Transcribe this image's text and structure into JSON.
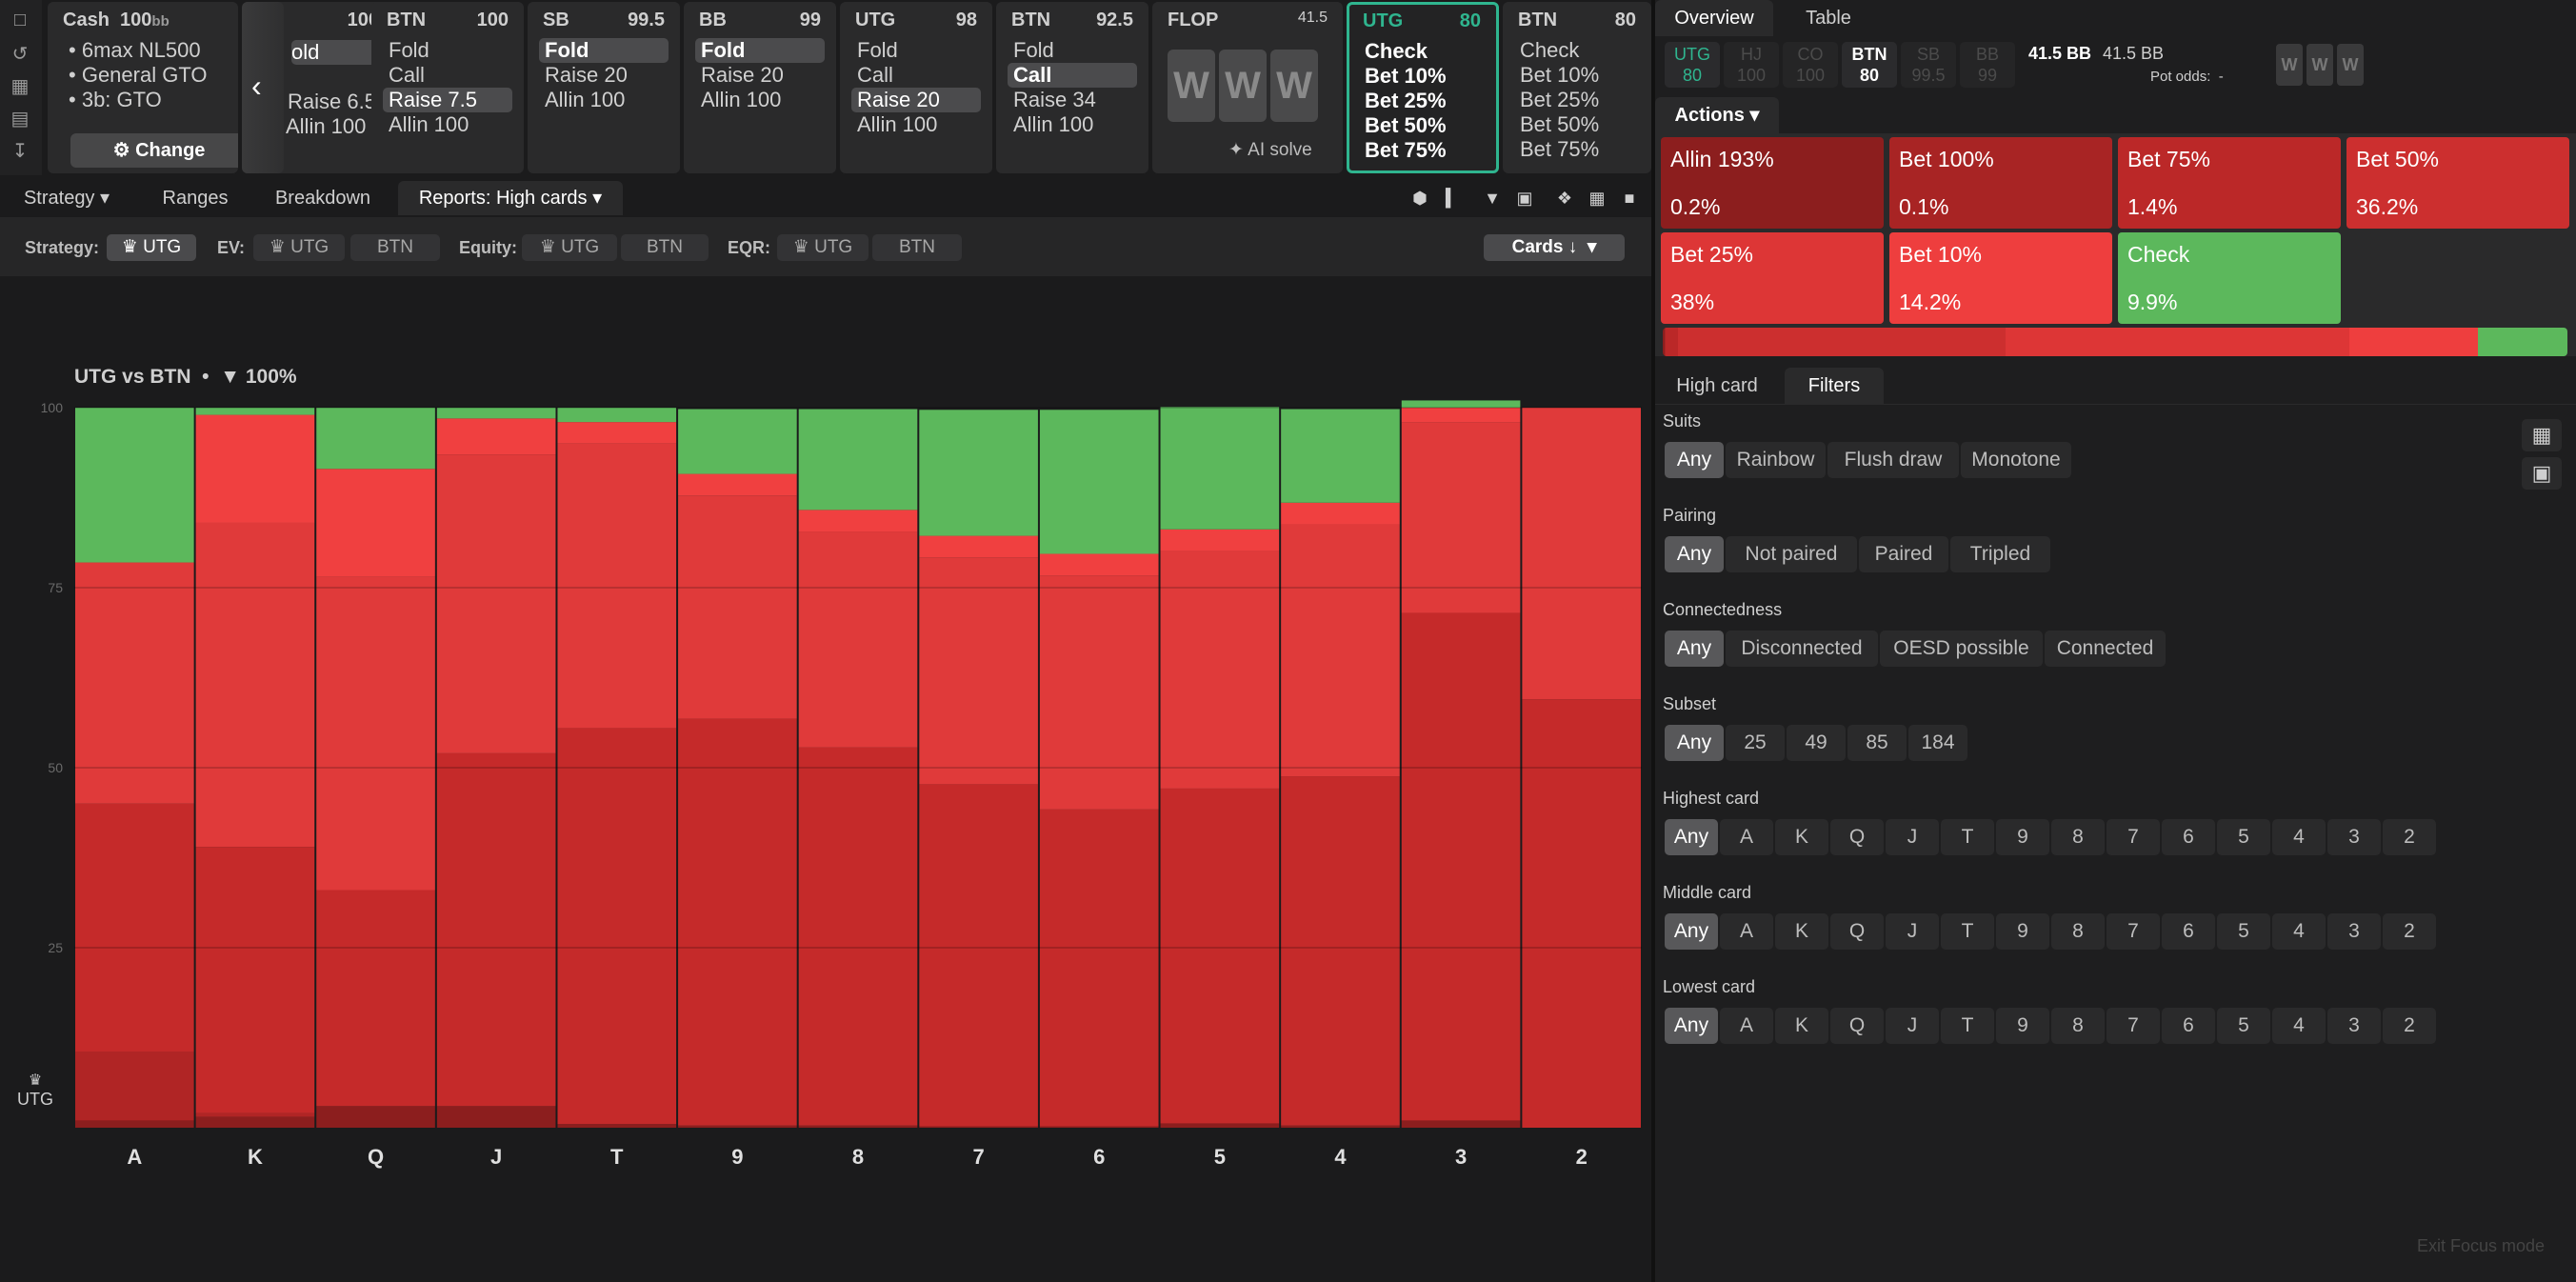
{
  "rail": {
    "icons": [
      "bookmark-icon",
      "refresh-icon",
      "save-icon",
      "gamepad-icon",
      "collapse-icon"
    ]
  },
  "cash": {
    "title": "Cash",
    "stack": "100",
    "stack_unit": "bb",
    "lines": [
      "6max NL500",
      "General GTO",
      "3b: GTO"
    ],
    "change_label": "Change"
  },
  "partial_card": {
    "stack": "100",
    "actions": [
      "old",
      "Raise 6.5",
      "Allin 100"
    ]
  },
  "seats": [
    {
      "pos": "BTN",
      "stack": "100",
      "actions": [
        "Fold",
        "Call",
        "Raise 7.5",
        "Allin 100"
      ],
      "selected": 2
    },
    {
      "pos": "SB",
      "stack": "99.5",
      "actions": [
        "Fold",
        "Raise 20",
        "Allin 100"
      ],
      "selected": 0
    },
    {
      "pos": "BB",
      "stack": "99",
      "actions": [
        "Fold",
        "Raise 20",
        "Allin 100"
      ],
      "selected": 0
    },
    {
      "pos": "UTG",
      "stack": "98",
      "actions": [
        "Fold",
        "Call",
        "Raise 20",
        "Allin 100"
      ],
      "selected": 2
    },
    {
      "pos": "BTN",
      "stack": "92.5",
      "actions": [
        "Fold",
        "Call",
        "Raise 34",
        "Allin 100"
      ],
      "selected": 1
    }
  ],
  "flop": {
    "label": "FLOP",
    "pot": "41.5",
    "cards": [
      "W",
      "W",
      "W"
    ],
    "ai_solve": "AI solve"
  },
  "active": {
    "pos": "UTG",
    "stack": "80",
    "actions": [
      "Check",
      "Bet 10%",
      "Bet 25%",
      "Bet 50%",
      "Bet 75%"
    ]
  },
  "next": {
    "pos": "BTN",
    "stack": "80",
    "actions": [
      "Check",
      "Bet 10%",
      "Bet 25%",
      "Bet 50%",
      "Bet 75%"
    ]
  },
  "tabs": [
    "Strategy",
    "Ranges",
    "Breakdown",
    "Reports: High cards"
  ],
  "filterbar": {
    "strategy_label": "Strategy:",
    "strategy_opt": "UTG",
    "ev_label": "EV:",
    "ev_opts": [
      "UTG",
      "BTN"
    ],
    "equity_label": "Equity:",
    "equity_opts": [
      "UTG",
      "BTN"
    ],
    "eqr_label": "EQR:",
    "eqr_opts": [
      "UTG",
      "BTN"
    ],
    "sort": "Cards"
  },
  "chart_data": {
    "type": "bar",
    "title": "UTG vs BTN",
    "filter_pct": "100%",
    "categories": [
      "A",
      "K",
      "Q",
      "J",
      "T",
      "9",
      "8",
      "7",
      "6",
      "5",
      "4",
      "3",
      "2"
    ],
    "ylim": [
      0,
      100
    ],
    "yticks": [
      100,
      75,
      50,
      25
    ],
    "player": "UTG",
    "series": [
      {
        "name": "Allin 193%",
        "color": "#8c1e1e",
        "values": [
          1,
          1.5,
          3,
          3,
          0.5,
          0.3,
          0.3,
          0.2,
          0.2,
          0.6,
          0.3,
          1,
          0
        ]
      },
      {
        "name": "Bet 100%",
        "color": "#b02525",
        "values": [
          9.5,
          0.5,
          0,
          0,
          0,
          0,
          0,
          0,
          0,
          0,
          0,
          0,
          0
        ]
      },
      {
        "name": "Bet 75%",
        "color": "#c52a2a",
        "values": [
          34.5,
          37,
          30,
          49,
          55,
          56.5,
          52.5,
          47.5,
          44,
          46.5,
          48.5,
          70.5,
          59.5
        ]
      },
      {
        "name": "Bet 50%",
        "color": "#d03030",
        "values": [
          0,
          0,
          0,
          0,
          0,
          0,
          0,
          0,
          0,
          0,
          0,
          0,
          0
        ]
      },
      {
        "name": "Bet 25%",
        "color": "#e03a3a",
        "values": [
          33.5,
          45,
          43.5,
          41.5,
          39.5,
          31,
          30,
          31.5,
          32.5,
          33,
          35,
          26.5,
          40.5
        ]
      },
      {
        "name": "Bet 10%",
        "color": "#f04040",
        "values": [
          0,
          15,
          15,
          5,
          3,
          3,
          3,
          3,
          3,
          3,
          3,
          2,
          0
        ]
      },
      {
        "name": "Check",
        "color": "#5cb85c",
        "values": [
          21.5,
          1,
          8.5,
          1.5,
          2,
          9,
          14,
          17.5,
          20,
          17,
          13,
          1,
          0
        ]
      }
    ]
  },
  "panel": {
    "tabs": [
      "Overview",
      "Table"
    ],
    "positions": [
      {
        "pos": "UTG",
        "stack": "80",
        "state": "utg"
      },
      {
        "pos": "HJ",
        "stack": "100",
        "state": "off"
      },
      {
        "pos": "CO",
        "stack": "100",
        "state": "off"
      },
      {
        "pos": "BTN",
        "stack": "80",
        "state": "on"
      },
      {
        "pos": "SB",
        "stack": "99.5",
        "state": "off"
      },
      {
        "pos": "BB",
        "stack": "99",
        "state": "off"
      }
    ],
    "pot": "41.5 BB",
    "pot2": "41.5 BB",
    "pot_odds_label": "Pot odds:",
    "pot_odds": "-",
    "board": [
      "W",
      "W",
      "W"
    ],
    "actions_label": "Actions",
    "tiles": [
      {
        "name": "Allin 193%",
        "value": "0.2%",
        "color": "#8c1e1e"
      },
      {
        "name": "Bet 100%",
        "value": "0.1%",
        "color": "#a82424"
      },
      {
        "name": "Bet 75%",
        "value": "1.4%",
        "color": "#bb2828"
      },
      {
        "name": "Bet 50%",
        "value": "36.2%",
        "color": "#cc2f2f"
      },
      {
        "name": "Bet 25%",
        "value": "38%",
        "color": "#dd3636"
      },
      {
        "name": "Bet 10%",
        "value": "14.2%",
        "color": "#ee3e3e"
      },
      {
        "name": "Check",
        "value": "9.9%",
        "color": "#5cb85c"
      }
    ],
    "section_tabs": [
      "High card",
      "Filters"
    ],
    "filters": [
      {
        "label": "Suits",
        "options": [
          "Any",
          "Rainbow",
          "Flush draw",
          "Monotone"
        ]
      },
      {
        "label": "Pairing",
        "options": [
          "Any",
          "Not paired",
          "Paired",
          "Tripled"
        ]
      },
      {
        "label": "Connectedness",
        "options": [
          "Any",
          "Disconnected",
          "OESD possible",
          "Connected"
        ]
      },
      {
        "label": "Subset",
        "options": [
          "Any",
          "25",
          "49",
          "85",
          "184"
        ]
      },
      {
        "label": "Highest card",
        "options": [
          "Any",
          "A",
          "K",
          "Q",
          "J",
          "T",
          "9",
          "8",
          "7",
          "6",
          "5",
          "4",
          "3",
          "2"
        ]
      },
      {
        "label": "Middle card",
        "options": [
          "Any",
          "A",
          "K",
          "Q",
          "J",
          "T",
          "9",
          "8",
          "7",
          "6",
          "5",
          "4",
          "3",
          "2"
        ]
      },
      {
        "label": "Lowest card",
        "options": [
          "Any",
          "A",
          "K",
          "Q",
          "J",
          "T",
          "9",
          "8",
          "7",
          "6",
          "5",
          "4",
          "3",
          "2"
        ]
      }
    ],
    "exit_focus": "Exit Focus mode"
  }
}
